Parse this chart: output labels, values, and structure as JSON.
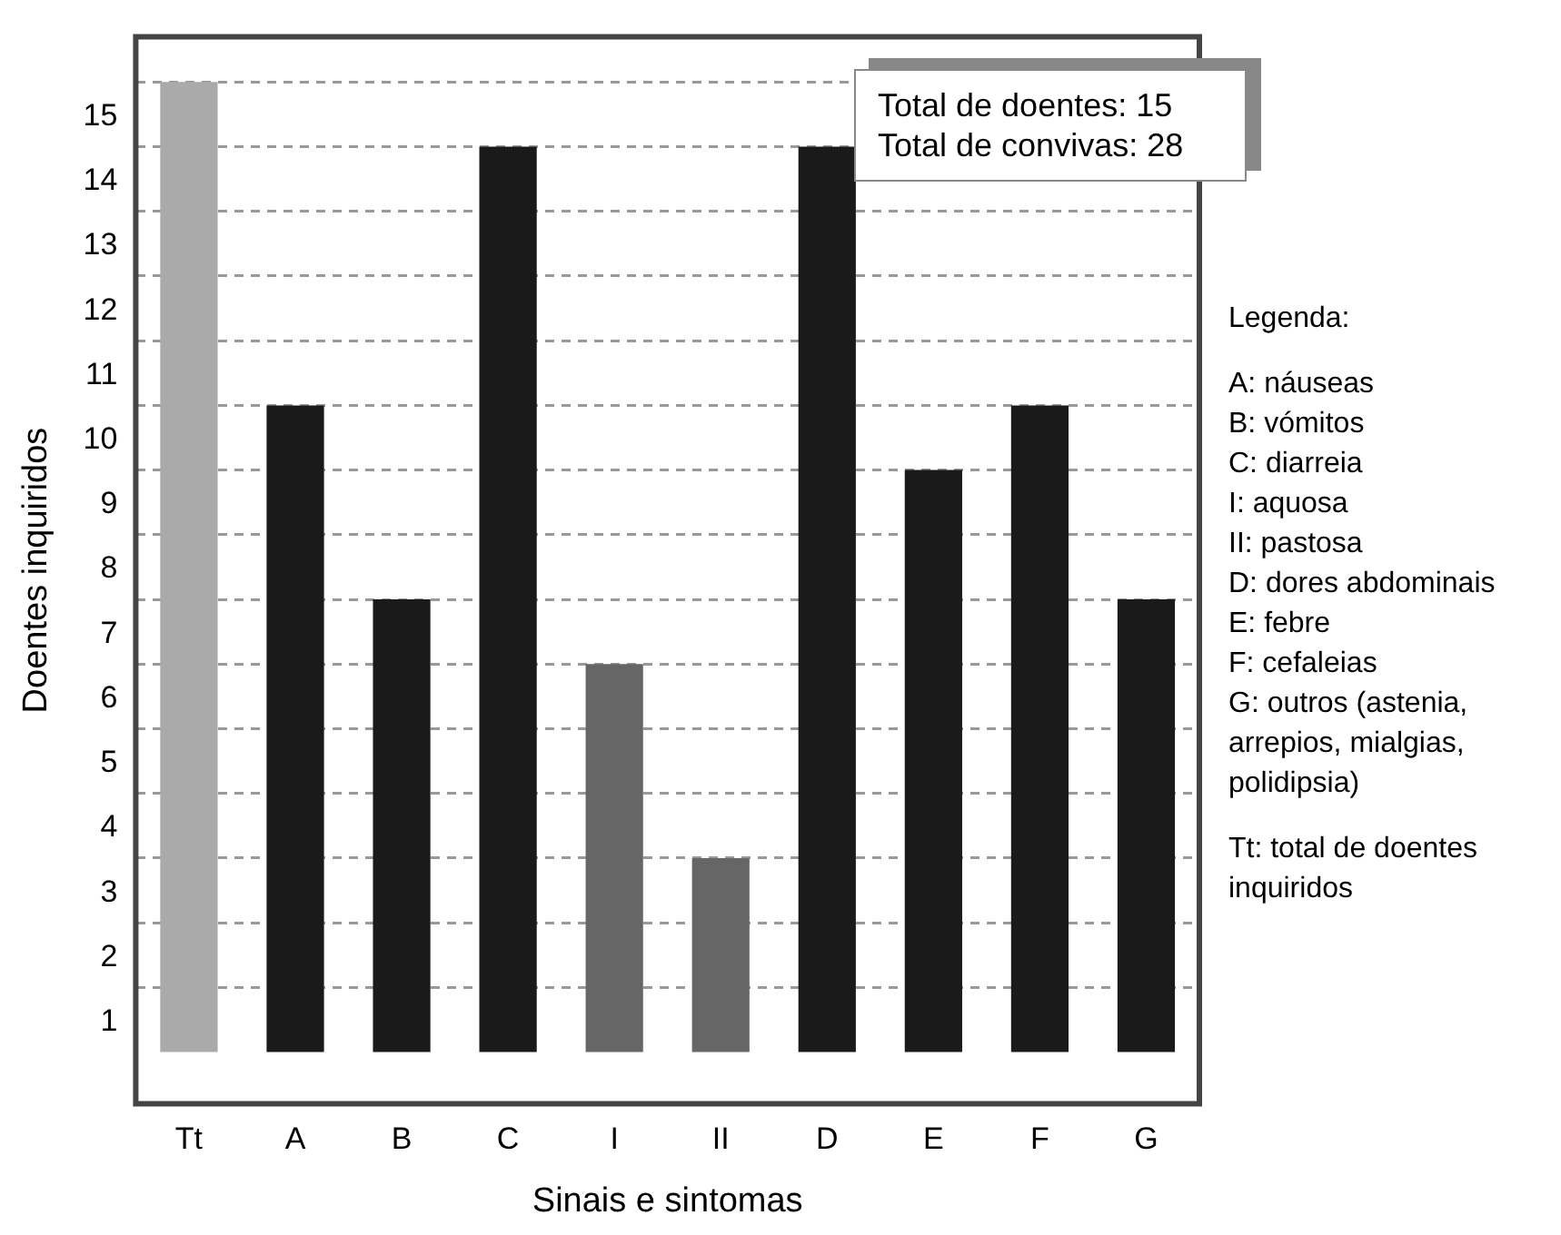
{
  "chart_data": {
    "type": "bar",
    "xlabel": "Sinais e sintomas",
    "ylabel": "Doentes inquiridos",
    "categories": [
      "Tt",
      "A",
      "B",
      "C",
      "I",
      "II",
      "D",
      "E",
      "F",
      "G"
    ],
    "values": [
      15,
      10,
      7,
      14,
      6,
      3,
      14,
      9,
      10,
      7
    ],
    "colors": [
      "#aaaaaa",
      "#1a1a1a",
      "#1a1a1a",
      "#1a1a1a",
      "#666666",
      "#666666",
      "#1a1a1a",
      "#1a1a1a",
      "#1a1a1a",
      "#1a1a1a"
    ],
    "ylim": [
      -0.8,
      15.7
    ],
    "yticks": [
      1,
      2,
      3,
      4,
      5,
      6,
      7,
      8,
      9,
      10,
      11,
      12,
      13,
      14,
      15
    ],
    "grid": "y",
    "legend": false,
    "annotations": [
      "Total de doentes: 15",
      "Total de convivas: 28",
      "Legenda:",
      "A:  náuseas",
      "B:  vómitos",
      "C:  diarreia",
      "I:  aquosa",
      "II:  pastosa",
      "D:  dores abdominais",
      "E:  febre",
      "F:  cefaleias",
      "G:  outros (astenia, arrepios, mialgias, polidipsia)",
      "Tt: total de doentes inquiridos"
    ]
  }
}
